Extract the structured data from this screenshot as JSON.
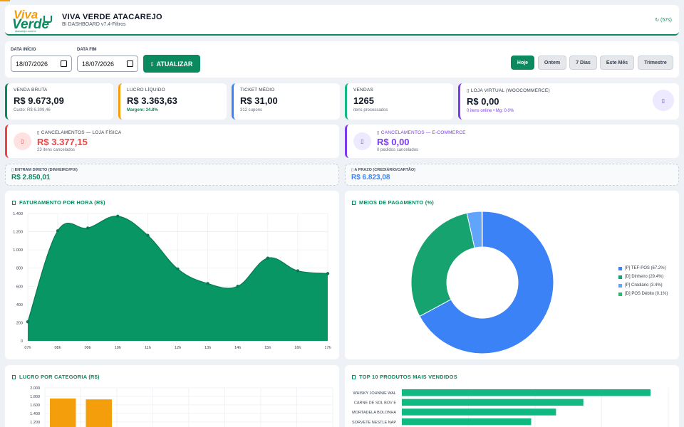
{
  "header": {
    "logo_top": "Viva",
    "logo_bottom": "Verde",
    "logo_tag": "atacarejo.com.br",
    "title": "VIVA VERDE ATACAREJO",
    "subtitle": "BI DASHBOARD v7.4-Filtros",
    "refresh": "(57s)",
    "refresh_icon": "refresh-icon"
  },
  "filters": {
    "start_label": "DATA INÍCIO",
    "start_value": "18/07/2026",
    "end_label": "DATA FIM",
    "end_value": "18/07/2026",
    "update_label": "ATUALIZAR",
    "update_icon": "refresh-icon",
    "quick": [
      "Hoje",
      "Ontem",
      "7 Dias",
      "Este Mês",
      "Trimestre"
    ],
    "active_quick": "Hoje"
  },
  "kpis": [
    {
      "label": "VENDA BRUTA",
      "value": "R$ 9.673,09",
      "sub": "Custo: R$ 6.309,46",
      "color": "#0b8a5f"
    },
    {
      "label": "LUCRO LÍQUIDO",
      "value": "R$ 3.363,63",
      "sub": "Margem: 34.8%",
      "color": "#f59e0b"
    },
    {
      "label": "TICKET MÉDIO",
      "value": "R$ 31,00",
      "sub": "312 cupons",
      "color": "#3b82f6"
    },
    {
      "label": "VENDAS",
      "value": "1265",
      "sub": "itens processados",
      "color": "#10b981"
    },
    {
      "label": "LOJA VIRTUAL (WOOCOMMERCE)",
      "value": "R$ 0,00",
      "sub": "0 itens online • Mg: 0.0%",
      "color": "#7c3aed"
    }
  ],
  "cancellations": {
    "physical": {
      "label": "CANCELAMENTOS — LOJA FÍSICA",
      "value": "R$ 3.377,15",
      "sub": "23 itens cancelados"
    },
    "online": {
      "label": "CANCELAMENTOS — E-COMMERCE",
      "value": "R$ 0,00",
      "sub": "0 pedidos cancelados"
    }
  },
  "flows": {
    "direct": {
      "label": "ENTRAM DIRETO (DINHEIRO/PIX)",
      "value": "R$ 2.850,01"
    },
    "term": {
      "label": "A PRAZO (CREDIÁRIO/CARTÃO)",
      "value": "R$ 6.823,08"
    }
  },
  "panels": {
    "hourly": "FATURAMENTO POR HORA (R$)",
    "payments": "MEIOS DE PAGAMENTO (%)",
    "category": "LUCRO POR CATEGORIA (R$)",
    "top10": "TOP 10 PRODUTOS MAIS VENDIDOS"
  },
  "chart_data": [
    {
      "type": "area",
      "title": "FATURAMENTO POR HORA (R$)",
      "x": [
        "07h",
        "08h",
        "09h",
        "10h",
        "11h",
        "12h",
        "13h",
        "14h",
        "15h",
        "16h",
        "17h"
      ],
      "values": [
        210,
        1210,
        1240,
        1370,
        1160,
        790,
        630,
        600,
        910,
        770,
        740
      ],
      "ylim": [
        0,
        1400
      ],
      "yticks": [
        0,
        200,
        400,
        600,
        800,
        1000,
        1200,
        1400
      ],
      "ytick_labels": [
        "0",
        "200",
        "400",
        "600",
        "800",
        "1.000",
        "1.200",
        "1.400"
      ],
      "color": "#079664",
      "grid": true
    },
    {
      "type": "pie",
      "title": "MEIOS DE PAGAMENTO (%)",
      "labels": [
        "[P] TEF-POS (67.2%)",
        "[D] Dinheiro (29.4%)",
        "[P] Crediário (3.4%)",
        "[D] POS Débito (0.1%)"
      ],
      "values": [
        67.2,
        29.4,
        3.4,
        0.1
      ],
      "colors": [
        "#3b82f6",
        "#16a36f",
        "#60a5fa",
        "#2bb673"
      ],
      "legend_position": "right"
    },
    {
      "type": "bar",
      "title": "LUCRO POR CATEGORIA (R$)",
      "values": [
        1750,
        1730
      ],
      "ylim": [
        0,
        2000
      ],
      "yticks": [
        1200,
        1400,
        1600,
        1800,
        2000
      ],
      "ytick_labels": [
        "1.200",
        "1.400",
        "1.600",
        "1.800",
        "2.000"
      ],
      "color": "#f59e0b",
      "grid": true
    },
    {
      "type": "bar",
      "orientation": "horizontal",
      "title": "TOP 10 PRODUTOS MAIS VENDIDOS",
      "categories": [
        "WHISKY JOHNNIE WAL",
        "CARNE DE SOL BOV E",
        "MORTADELA BOLONHA",
        "SORVETE NESTLE NAP"
      ],
      "values": [
        100,
        73,
        62,
        52
      ],
      "color": "#10b981",
      "grid": true
    }
  ]
}
